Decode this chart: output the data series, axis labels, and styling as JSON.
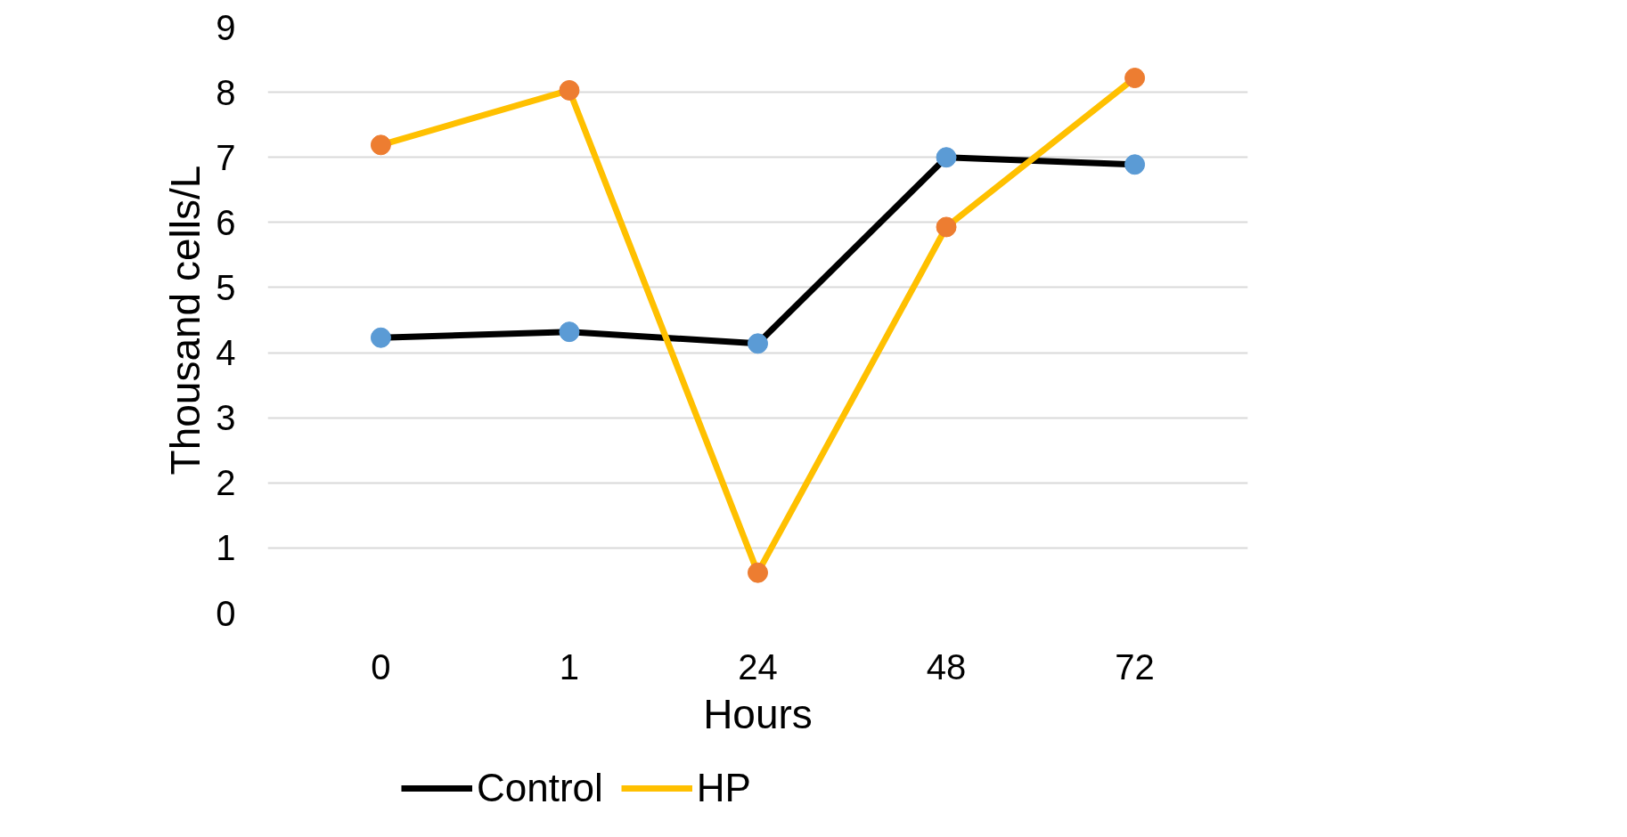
{
  "chart_data": {
    "type": "line",
    "ylabel": "Thousand cells/L",
    "xlabel": "Hours",
    "categories": [
      "0",
      "1",
      "24",
      "48",
      "72"
    ],
    "series": [
      {
        "name": "Control",
        "color": "#000000",
        "colors": [
          "#5b9bd5",
          "#5b9bd5",
          "#5b9bd5",
          "#5b9bd5",
          "#5b9bd5"
        ],
        "values": [
          4.23,
          4.32,
          4.14,
          7.0,
          6.89
        ]
      },
      {
        "name": "HP",
        "color": "#ffc000",
        "colors": [
          "#ed7d31",
          "#ed7d31",
          "#ed7d31",
          "#ed7d31",
          "#ed7d31"
        ],
        "values": [
          7.19,
          8.03,
          0.62,
          5.93,
          8.22
        ]
      }
    ],
    "ylim": [
      0,
      9
    ],
    "yticks": [
      0,
      1,
      2,
      3,
      4,
      5,
      6,
      7,
      8,
      9
    ],
    "grid": "y",
    "legend": "bottom left",
    "marker": "circle",
    "line_style": "solid"
  }
}
